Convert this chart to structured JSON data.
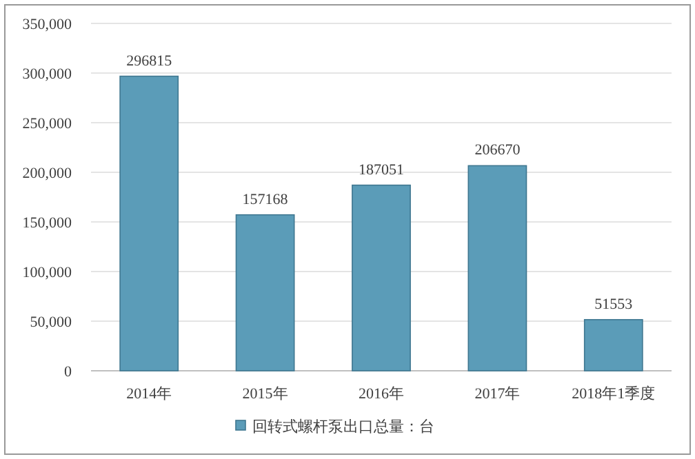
{
  "chart_data": {
    "type": "bar",
    "categories": [
      "2014年",
      "2015年",
      "2016年",
      "2017年",
      "2018年1季度"
    ],
    "series": [
      {
        "name": "回转式螺杆泵出口总量：台",
        "color": "#5b9cb8",
        "values": [
          296815,
          157168,
          187051,
          206670,
          51553
        ]
      }
    ],
    "ylim": [
      0,
      350000
    ],
    "yticks": [
      {
        "value": 0,
        "label": "0"
      },
      {
        "value": 50000,
        "label": "50,000"
      },
      {
        "value": 100000,
        "label": "100,000"
      },
      {
        "value": 150000,
        "label": "150,000"
      },
      {
        "value": 200000,
        "label": "200,000"
      },
      {
        "value": 250000,
        "label": "250,000"
      },
      {
        "value": 300000,
        "label": "300,000"
      },
      {
        "value": 350000,
        "label": "350,000"
      }
    ],
    "grid": "y",
    "data_labels": true,
    "legend": "bottom"
  }
}
